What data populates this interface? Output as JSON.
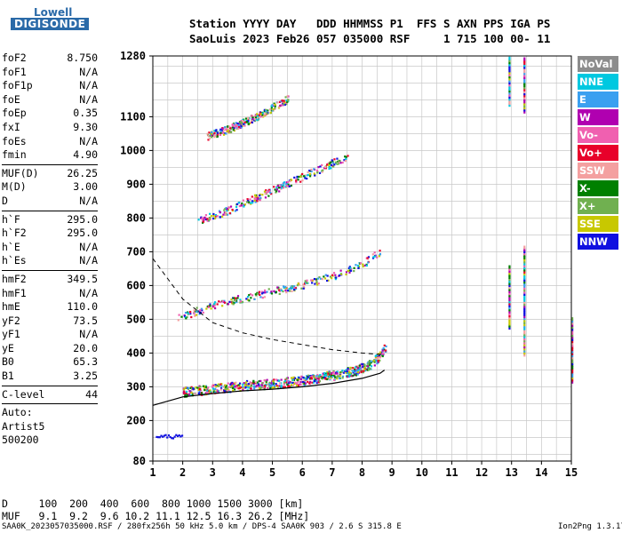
{
  "logo": {
    "top": "Lowell",
    "bottom": "DIGISONDE"
  },
  "header": {
    "line1": "Station YYYY DAY   DDD HHMMSS P1  FFS S AXN PPS IGA PS",
    "line2": "SaoLuis 2023 Feb26 057 035000 RSF     1 715 100 00- 11"
  },
  "params": [
    {
      "name": "foF2",
      "value": "8.750"
    },
    {
      "name": "foF1",
      "value": "N/A"
    },
    {
      "name": "foF1p",
      "value": "N/A"
    },
    {
      "name": "foE",
      "value": "N/A"
    },
    {
      "name": "foEp",
      "value": "0.35"
    },
    {
      "name": "fxI",
      "value": "9.30"
    },
    {
      "name": "foEs",
      "value": "N/A"
    },
    {
      "name": "fmin",
      "value": "4.90",
      "sep": true
    },
    {
      "name": "MUF(D)",
      "value": "26.25"
    },
    {
      "name": "M(D)",
      "value": "3.00"
    },
    {
      "name": "D",
      "value": "N/A",
      "sep": true
    },
    {
      "name": "h`F",
      "value": "295.0"
    },
    {
      "name": "h`F2",
      "value": "295.0"
    },
    {
      "name": "h`E",
      "value": "N/A"
    },
    {
      "name": "h`Es",
      "value": "N/A",
      "sep": true
    },
    {
      "name": "hmF2",
      "value": "349.5"
    },
    {
      "name": "hmF1",
      "value": "N/A"
    },
    {
      "name": "hmE",
      "value": "110.0"
    },
    {
      "name": "yF2",
      "value": "73.5"
    },
    {
      "name": "yF1",
      "value": "N/A"
    },
    {
      "name": "yE",
      "value": "20.0"
    },
    {
      "name": "B0",
      "value": "65.3"
    },
    {
      "name": "B1",
      "value": "3.25",
      "sep": true
    },
    {
      "name": "C-level",
      "value": "44",
      "sep": true
    },
    {
      "name": "Auto:",
      "value": ""
    },
    {
      "name": "Artist5",
      "value": ""
    },
    {
      "name": "500200",
      "value": ""
    }
  ],
  "legend": [
    {
      "label": "NoVal",
      "color": "#8c8c8c"
    },
    {
      "label": "NNE",
      "color": "#00c8e0"
    },
    {
      "label": "E",
      "color": "#3aa0f0"
    },
    {
      "label": "W",
      "color": "#b000b0"
    },
    {
      "label": "Vo-",
      "color": "#f060b0"
    },
    {
      "label": "Vo+",
      "color": "#e8002a"
    },
    {
      "label": "SSW",
      "color": "#f4a0a0"
    },
    {
      "label": "X-",
      "color": "#008000"
    },
    {
      "label": "X+",
      "color": "#70b050"
    },
    {
      "label": "SSE",
      "color": "#c8c800"
    },
    {
      "label": "NNW",
      "color": "#1010e0"
    }
  ],
  "muf_table": {
    "d_line": "D     100  200  400  600  800 1000 1500 3000 [km]",
    "muf_line": "MUF   9.1  9.2  9.6 10.2 11.1 12.5 16.3 26.2 [MHz]"
  },
  "footer": {
    "left": "SAA0K_2023057035000.RSF / 280fx256h 50 kHz 5.0 km / DPS-4 SAA0K 903 / 2.6 S 315.8 E",
    "right": "Ion2Png 1.3.17"
  },
  "chart_data": {
    "type": "scatter",
    "title": "",
    "xlabel": "",
    "ylabel": "",
    "xlim": [
      1,
      15
    ],
    "ylim": [
      80,
      1280
    ],
    "xticks": [
      1,
      2,
      3,
      4,
      5,
      6,
      7,
      8,
      9,
      10,
      11,
      12,
      13,
      14,
      15
    ],
    "yticks": [
      80,
      200,
      300,
      400,
      500,
      600,
      700,
      800,
      900,
      1000,
      1100,
      1280
    ],
    "traces": [
      {
        "name": "F-trace",
        "x": [
          2.0,
          3.0,
          4.0,
          5.0,
          6.0,
          7.0,
          7.8,
          8.3,
          8.6,
          8.8
        ],
        "y": [
          280,
          290,
          300,
          305,
          315,
          330,
          345,
          365,
          390,
          420
        ]
      },
      {
        "name": "F-2hop",
        "x": [
          1.8,
          3.0,
          4.0,
          5.0,
          6.0,
          7.0,
          8.0,
          8.6
        ],
        "y": [
          500,
          540,
          560,
          580,
          600,
          625,
          660,
          700
        ]
      },
      {
        "name": "F-3hop",
        "x": [
          2.5,
          3.5,
          4.5,
          5.5,
          6.5,
          7.5
        ],
        "y": [
          790,
          820,
          860,
          900,
          940,
          980
        ]
      },
      {
        "name": "F-4hop",
        "x": [
          2.8,
          3.5,
          4.5,
          5.5
        ],
        "y": [
          1040,
          1060,
          1100,
          1150
        ]
      }
    ],
    "profile_solid": {
      "x": [
        1,
        2,
        3,
        4,
        5,
        6,
        7,
        8,
        8.6,
        8.75
      ],
      "y": [
        245,
        270,
        280,
        288,
        293,
        300,
        310,
        325,
        340,
        349.5
      ]
    },
    "profile_dashed": {
      "x": [
        1,
        2,
        3,
        4,
        5,
        6,
        7,
        8,
        8.7
      ],
      "y": [
        680,
        560,
        490,
        460,
        440,
        425,
        410,
        400,
        395
      ]
    },
    "vertical_streaks": [
      {
        "x": 12.9,
        "y": [
          480,
          660
        ]
      },
      {
        "x": 13.4,
        "y": [
          400,
          720
        ]
      },
      {
        "x": 12.9,
        "y": [
          1140,
          1280
        ]
      },
      {
        "x": 13.4,
        "y": [
          1120,
          1280
        ]
      },
      {
        "x": 15.0,
        "y": [
          320,
          510
        ]
      }
    ],
    "low_cluster": {
      "x": [
        1.1,
        2.0
      ],
      "y": [
        150,
        160
      ]
    }
  }
}
